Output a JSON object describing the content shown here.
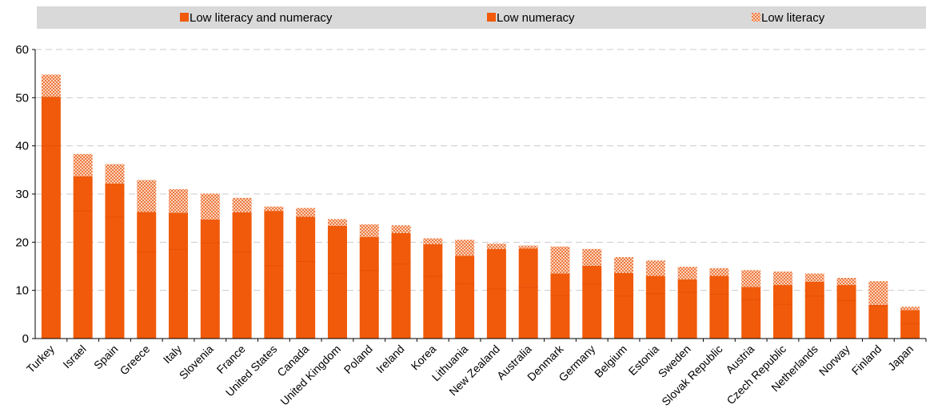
{
  "chart_data": {
    "type": "bar",
    "stacked": true,
    "title": "",
    "xlabel": "",
    "ylabel": "",
    "ylim": [
      0,
      60
    ],
    "yticks": [
      0,
      10,
      20,
      30,
      40,
      50,
      60
    ],
    "grid": true,
    "legend_position": "top",
    "colors": {
      "solid": "#f05a0a",
      "shade": "#e84f08",
      "pattern_bg": "#fbd3bb",
      "pattern_fg": "#ee7a42",
      "legend_band": "#d9d9d9",
      "grid": "#cccccc",
      "axis": "#000000"
    },
    "categories": [
      "Turkey",
      "Israel",
      "Spain",
      "Greece",
      "Italy",
      "Slovenia",
      "France",
      "United States",
      "Canada",
      "United Kingdom",
      "Poland",
      "Ireland",
      "Korea",
      "Lithuania",
      "New Zealand",
      "Australia",
      "Denmark",
      "Germany",
      "Belgium",
      "Estonia",
      "Sweden",
      "Slovak Republic",
      "Austria",
      "Czech Republic",
      "Netherlands",
      "Norway",
      "Finland",
      "Japan"
    ],
    "series": [
      {
        "name": "Low literacy and numeracy",
        "values": [
          40.0,
          26.5,
          25.2,
          18.0,
          18.5,
          19.8,
          18.0,
          15.1,
          16.0,
          13.5,
          14.1,
          15.5,
          12.9,
          11.4,
          10.3,
          10.6,
          8.9,
          11.3,
          8.8,
          9.3,
          9.6,
          9.2,
          8.1,
          7.1,
          8.8,
          7.9,
          6.8,
          3.1
        ]
      },
      {
        "name": "Low numeracy",
        "values": [
          10.2,
          7.2,
          7.0,
          8.3,
          7.6,
          4.9,
          8.2,
          11.4,
          9.3,
          9.9,
          7.0,
          6.4,
          6.7,
          5.8,
          8.3,
          8.1,
          4.6,
          3.8,
          4.8,
          3.7,
          2.7,
          3.8,
          2.6,
          4.0,
          3.0,
          3.2,
          0.2,
          2.8
        ]
      },
      {
        "name": "Low literacy",
        "values": [
          4.6,
          4.6,
          4.0,
          6.6,
          4.9,
          5.4,
          3.0,
          0.9,
          1.8,
          1.4,
          2.6,
          1.6,
          1.2,
          3.3,
          1.1,
          0.6,
          5.6,
          3.5,
          3.3,
          3.2,
          2.6,
          1.6,
          3.5,
          2.8,
          1.7,
          1.5,
          4.9,
          0.7
        ]
      }
    ]
  }
}
